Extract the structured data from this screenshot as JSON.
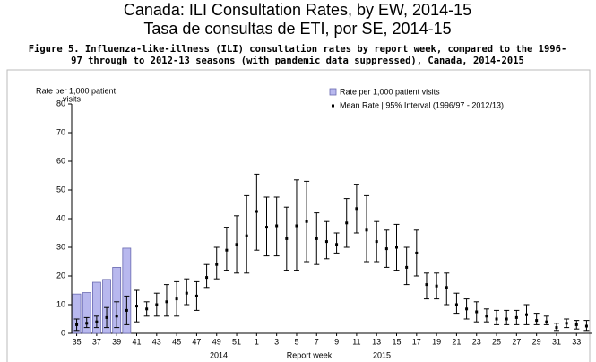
{
  "chart_data": {
    "type": "bar_errorbar",
    "title": "Canada: ILI Consultation Rates, by EW, 2014-15",
    "subtitle": "Tasa de consultas de ETI, por SE, 2014-15",
    "caption": [
      "Figure 5. Influenza-like-illness (ILI) consultation rates by report week, compared to the 1996-",
      "97 through to 2012-13 seasons (with pandemic data suppressed), Canada, 2014-2015"
    ],
    "ylabel": [
      "Rate per 1,000  patient",
      "visits"
    ],
    "xlabel": "Report week",
    "year_labels": [
      "2014",
      "2015"
    ],
    "categories": [
      "35",
      null,
      "37",
      null,
      "39",
      null,
      "41",
      null,
      "43",
      null,
      "45",
      null,
      "47",
      null,
      "49",
      null,
      "51",
      null,
      "1",
      null,
      "3",
      null,
      "5",
      null,
      "7",
      null,
      "9",
      null,
      "11",
      null,
      "13",
      null,
      "15",
      null,
      "17",
      null,
      "19",
      null,
      "21",
      null,
      "23",
      null,
      "25",
      null,
      "27",
      null,
      "29",
      null,
      "31",
      null,
      "33",
      null
    ],
    "ylim": [
      0,
      80
    ],
    "yticks": [
      0,
      10,
      20,
      30,
      40,
      50,
      60,
      70,
      80
    ],
    "legend": "top-right",
    "series": [
      {
        "name": "Rate per 1,000 patient visits",
        "color": "#b8b8ee",
        "kind": "bar",
        "values": [
          13.7,
          14.2,
          17.8,
          18.8,
          23,
          29.7,
          null,
          null,
          null,
          null,
          null,
          null,
          null,
          null,
          null,
          null,
          null,
          null,
          null,
          null,
          null,
          null,
          null,
          null,
          null,
          null,
          null,
          null,
          null,
          null,
          null,
          null,
          null,
          null,
          null,
          null,
          null,
          null,
          null,
          null,
          null,
          null,
          null,
          null,
          null,
          null,
          null,
          null,
          null,
          null,
          null,
          null
        ]
      },
      {
        "name": "Mean Rate | 95% Interval (1996/97 - 2012/13)",
        "color": "#000000",
        "kind": "errorbar",
        "values": [
          3,
          3.5,
          4,
          5.5,
          6,
          8,
          9.5,
          8.5,
          10,
          11,
          12,
          14,
          13,
          19.5,
          24,
          29,
          31,
          34,
          42.5,
          37,
          37.5,
          33,
          37.5,
          39,
          33,
          32,
          31,
          38.5,
          43.5,
          36,
          32,
          29.5,
          30,
          23,
          28,
          17,
          16.5,
          16,
          10,
          8.5,
          7.5,
          6,
          5,
          5,
          5.5,
          6.5,
          4.5,
          4,
          2,
          3.5,
          3,
          2.5
        ],
        "low": [
          1,
          2,
          2,
          2,
          2,
          3,
          4,
          6,
          6,
          6,
          6,
          10,
          8,
          16,
          19,
          22,
          21,
          21,
          29,
          27,
          27,
          22,
          22,
          25,
          24,
          26,
          28,
          30,
          35,
          25,
          25,
          23,
          22,
          17,
          20,
          12,
          12,
          10,
          7,
          5,
          4,
          4,
          3,
          3,
          3,
          3,
          3,
          3,
          1,
          2,
          1.5,
          1
        ],
        "high": [
          5,
          5.5,
          6,
          9,
          11,
          13,
          15,
          11,
          14,
          17,
          18,
          19,
          18,
          24,
          30,
          37,
          41,
          48,
          55.5,
          47.5,
          47.5,
          44,
          53.5,
          53,
          42,
          39,
          35,
          47,
          52,
          48,
          39,
          36,
          38,
          30,
          36,
          21,
          21,
          21,
          14,
          12,
          11,
          8.5,
          8,
          8,
          8,
          10,
          7,
          6,
          3.5,
          5,
          4.5,
          4.5
        ]
      }
    ]
  }
}
